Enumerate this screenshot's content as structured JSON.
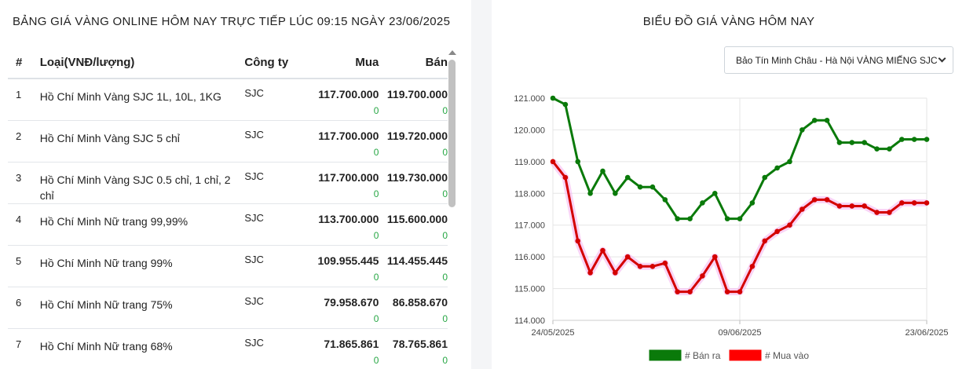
{
  "left": {
    "title": "BẢNG GIÁ VÀNG ONLINE HÔM NAY TRỰC TIẾP LÚC 09:15 NGÀY 23/06/2025",
    "headers": {
      "idx": "#",
      "type": "Loại(VNĐ/lượng)",
      "company": "Công ty",
      "buy": "Mua",
      "sell": "Bán"
    },
    "rows": [
      {
        "idx": "1",
        "name": "Hồ Chí Minh Vàng SJC 1L, 10L, 1KG",
        "company": "SJC",
        "buy": "117.700.000",
        "buy_chg": "0",
        "sell": "119.700.000",
        "sell_chg": "0"
      },
      {
        "idx": "2",
        "name": "Hồ Chí Minh Vàng SJC 5 chỉ",
        "company": "SJC",
        "buy": "117.700.000",
        "buy_chg": "0",
        "sell": "119.720.000",
        "sell_chg": "0"
      },
      {
        "idx": "3",
        "name": "Hồ Chí Minh Vàng SJC 0.5 chỉ, 1 chỉ, 2 chỉ",
        "company": "SJC",
        "buy": "117.700.000",
        "buy_chg": "0",
        "sell": "119.730.000",
        "sell_chg": "0"
      },
      {
        "idx": "4",
        "name": "Hồ Chí Minh Nữ trang 99,99%",
        "company": "SJC",
        "buy": "113.700.000",
        "buy_chg": "0",
        "sell": "115.600.000",
        "sell_chg": "0"
      },
      {
        "idx": "5",
        "name": "Hồ Chí Minh Nữ trang 99%",
        "company": "SJC",
        "buy": "109.955.445",
        "buy_chg": "0",
        "sell": "114.455.445",
        "sell_chg": "0"
      },
      {
        "idx": "6",
        "name": "Hồ Chí Minh Nữ trang 75%",
        "company": "SJC",
        "buy": "79.958.670",
        "buy_chg": "0",
        "sell": "86.858.670",
        "sell_chg": "0"
      },
      {
        "idx": "7",
        "name": "Hồ Chí Minh Nữ trang 68%",
        "company": "SJC",
        "buy": "71.865.861",
        "buy_chg": "0",
        "sell": "78.765.861",
        "sell_chg": "0"
      }
    ]
  },
  "right": {
    "title": "BIỂU ĐỒ GIÁ VÀNG HÔM NAY",
    "select_value": "Bảo Tín Minh Châu - Hà Nội VÀNG MIẾNG SJC"
  },
  "chart_data": {
    "type": "line",
    "x_ticks": [
      "24/05/2025",
      "09/06/2025",
      "23/06/2025"
    ],
    "y_ticks": [
      "114.000",
      "115.000",
      "116.000",
      "117.000",
      "118.000",
      "119.000",
      "120.000",
      "121.000"
    ],
    "ylim": [
      114000,
      121000
    ],
    "grid": true,
    "legend_position": "bottom",
    "series": [
      {
        "name": "# Bán ra",
        "color": "#0a7a0a",
        "values": [
          121000,
          120800,
          119000,
          118000,
          118700,
          118000,
          118500,
          118200,
          118200,
          117800,
          117200,
          117200,
          117700,
          118000,
          117200,
          117200,
          117700,
          118500,
          118800,
          119000,
          120000,
          120300,
          120300,
          119600,
          119600,
          119600,
          119400,
          119400,
          119700,
          119700,
          119700
        ]
      },
      {
        "name": "# Mua vào",
        "color": "#d40000",
        "values": [
          119000,
          118500,
          116500,
          115500,
          116200,
          115500,
          116000,
          115700,
          115700,
          115800,
          114900,
          114900,
          115400,
          116000,
          114900,
          114900,
          115700,
          116500,
          116800,
          117000,
          117500,
          117800,
          117800,
          117600,
          117600,
          117600,
          117400,
          117400,
          117700,
          117700,
          117700
        ]
      }
    ]
  },
  "colors": {
    "up": "#28a745",
    "legend_sell": "#0a7a0a",
    "legend_buy": "#ff0000"
  }
}
